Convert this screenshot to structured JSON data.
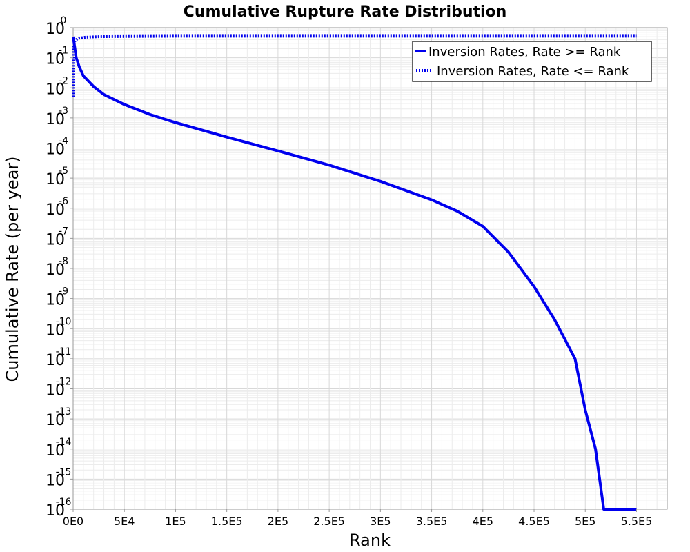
{
  "chart_data": {
    "type": "line",
    "title": "Cumulative Rupture Rate Distribution",
    "xlabel": "Rank",
    "ylabel": "Cumulative Rate (per year)",
    "xlim": [
      0,
      580000
    ],
    "ylim": [
      1e-16,
      1
    ],
    "yscale": "log",
    "grid": true,
    "legend_position": "top-right",
    "x_ticks": [
      {
        "value": 0,
        "label": "0E0"
      },
      {
        "value": 50000,
        "label": "5E4"
      },
      {
        "value": 100000,
        "label": "1E5"
      },
      {
        "value": 150000,
        "label": "1.5E5"
      },
      {
        "value": 200000,
        "label": "2E5"
      },
      {
        "value": 250000,
        "label": "2.5E5"
      },
      {
        "value": 300000,
        "label": "3E5"
      },
      {
        "value": 350000,
        "label": "3.5E5"
      },
      {
        "value": 400000,
        "label": "4E5"
      },
      {
        "value": 450000,
        "label": "4.5E5"
      },
      {
        "value": 500000,
        "label": "5E5"
      },
      {
        "value": 550000,
        "label": "5.5E5"
      }
    ],
    "y_ticks": [
      {
        "value": 1,
        "base": "10",
        "exp": "0"
      },
      {
        "value": 0.1,
        "base": "10",
        "exp": "-1"
      },
      {
        "value": 0.01,
        "base": "10",
        "exp": "-2"
      },
      {
        "value": 0.001,
        "base": "10",
        "exp": "-3"
      },
      {
        "value": 0.0001,
        "base": "10",
        "exp": "-4"
      },
      {
        "value": 1e-05,
        "base": "10",
        "exp": "-5"
      },
      {
        "value": 1e-06,
        "base": "10",
        "exp": "-6"
      },
      {
        "value": 1e-07,
        "base": "10",
        "exp": "-7"
      },
      {
        "value": 1e-08,
        "base": "10",
        "exp": "-8"
      },
      {
        "value": 1e-09,
        "base": "10",
        "exp": "-9"
      },
      {
        "value": 1e-10,
        "base": "10",
        "exp": "-10"
      },
      {
        "value": 1e-11,
        "base": "10",
        "exp": "-11"
      },
      {
        "value": 1e-12,
        "base": "10",
        "exp": "-12"
      },
      {
        "value": 1e-13,
        "base": "10",
        "exp": "-13"
      },
      {
        "value": 1e-14,
        "base": "10",
        "exp": "-14"
      },
      {
        "value": 1e-15,
        "base": "10",
        "exp": "-15"
      },
      {
        "value": 1e-16,
        "base": "10",
        "exp": "-16"
      }
    ],
    "series": [
      {
        "name": "Inversion Rates, Rate >= Rank",
        "color": "#0000ee",
        "style": "solid",
        "x": [
          0,
          1000,
          3000,
          6000,
          10000,
          20000,
          30000,
          50000,
          75000,
          100000,
          150000,
          200000,
          250000,
          300000,
          350000,
          375000,
          400000,
          425000,
          450000,
          470000,
          490000,
          500000,
          510000,
          518000,
          550000
        ],
        "y": [
          0.5,
          0.3,
          0.1,
          0.05,
          0.025,
          0.011,
          0.006,
          0.0028,
          0.0013,
          0.0007,
          0.00023,
          8e-05,
          2.7e-05,
          7.8e-06,
          1.9e-06,
          8e-07,
          2.5e-07,
          3.5e-08,
          2.5e-09,
          2e-10,
          1e-11,
          2e-13,
          1e-14,
          1e-16,
          1e-16
        ]
      },
      {
        "name": "Inversion Rates, Rate <= Rank",
        "color": "#0000ee",
        "style": "dotted",
        "x": [
          0,
          200,
          600,
          1500,
          3000,
          6000,
          12000,
          25000,
          50000,
          100000,
          200000,
          550000
        ],
        "y": [
          0.005,
          0.1,
          0.25,
          0.35,
          0.4,
          0.45,
          0.48,
          0.5,
          0.51,
          0.52,
          0.52,
          0.52
        ]
      }
    ]
  }
}
